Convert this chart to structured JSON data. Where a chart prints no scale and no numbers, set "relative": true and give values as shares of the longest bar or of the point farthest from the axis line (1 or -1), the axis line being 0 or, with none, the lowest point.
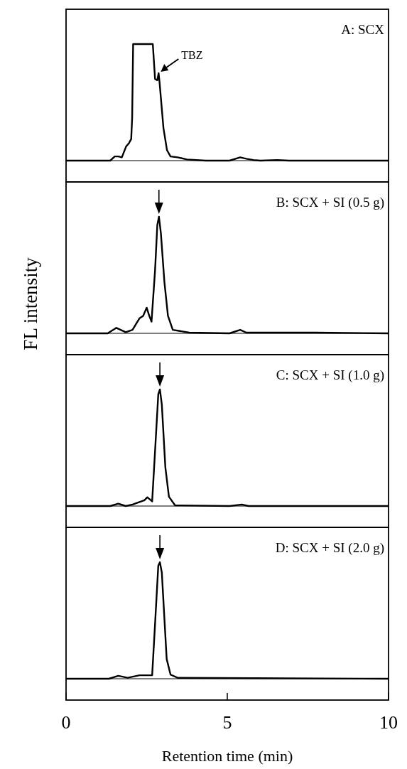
{
  "chart_data": [
    {
      "type": "line",
      "title": "A: SCX",
      "relative": true,
      "xlim": [
        0,
        10
      ],
      "tick_labels": false,
      "annotations": [
        {
          "text": "TBZ",
          "x": 2.87,
          "y": 0.75
        }
      ],
      "series": [
        {
          "color": "#000000",
          "x": [
            0,
            1.37,
            1.51,
            1.62,
            1.73,
            1.86,
            1.95,
            2.02,
            2.05,
            2.08,
            2.69,
            2.76,
            2.83,
            2.87,
            2.9,
            3.02,
            3.13,
            3.24,
            3.46,
            3.75,
            4.33,
            5.07,
            5.4,
            5.59,
            5.81,
            6.03,
            6.55,
            6.92,
            9.96,
            10
          ],
          "values": [
            0,
            0,
            0.036,
            0.036,
            0.028,
            0.12,
            0.15,
            0.185,
            0.37,
            1,
            1,
            0.7,
            0.69,
            0.75,
            0.67,
            0.28,
            0.09,
            0.036,
            0.028,
            0.01,
            0,
            0,
            0.028,
            0.016,
            0.005,
            0,
            0.005,
            0,
            0,
            0
          ]
        }
      ]
    },
    {
      "type": "line",
      "title": "B: SCX + SI (0.5 g)",
      "relative": true,
      "xlim": [
        0,
        10
      ],
      "tick_labels": false,
      "ylabel": "FL intensity",
      "series": [
        {
          "color": "#000000",
          "x": [
            0,
            1.29,
            1.56,
            1.85,
            2.06,
            2.28,
            2.39,
            2.5,
            2.58,
            2.65,
            2.76,
            2.83,
            2.88,
            2.94,
            3.05,
            3.16,
            3.31,
            3.53,
            3.82,
            5.07,
            5.4,
            5.59,
            7.72,
            9.96,
            10
          ],
          "values": [
            0,
            0,
            0.047,
            0.01,
            0.03,
            0.13,
            0.15,
            0.22,
            0.15,
            0.1,
            0.54,
            0.93,
            1,
            0.86,
            0.44,
            0.15,
            0.03,
            0.02,
            0.006,
            0,
            0.03,
            0.006,
            0.006,
            0,
            0
          ]
        }
      ]
    },
    {
      "type": "line",
      "title": "C: SCX + SI (1.0 g)",
      "relative": true,
      "xlim": [
        0,
        10
      ],
      "tick_labels": false,
      "series": [
        {
          "color": "#000000",
          "x": [
            0,
            1.37,
            1.62,
            1.85,
            2.06,
            2.43,
            2.52,
            2.67,
            2.77,
            2.86,
            2.91,
            2.97,
            3.08,
            3.19,
            3.38,
            5.07,
            5.45,
            5.66,
            9.96,
            10
          ],
          "values": [
            0,
            0,
            0.02,
            0,
            0.013,
            0.05,
            0.075,
            0.04,
            0.52,
            0.96,
            1,
            0.87,
            0.33,
            0.08,
            0.006,
            0,
            0.013,
            0,
            0,
            0
          ]
        }
      ]
    },
    {
      "type": "line",
      "title": "D: SCX + SI (2.0 g)",
      "relative": true,
      "xlim": [
        0,
        10
      ],
      "xticks": [
        0,
        5,
        10
      ],
      "tick_labels": "x",
      "xlabel": "Retention time (min)",
      "series": [
        {
          "color": "#000000",
          "x": [
            0,
            1.33,
            1.62,
            1.91,
            2.28,
            2.67,
            2.77,
            2.86,
            2.91,
            2.97,
            3.12,
            3.24,
            3.46,
            9.96,
            10
          ],
          "values": [
            0,
            0,
            0.025,
            0.008,
            0.03,
            0.03,
            0.52,
            0.97,
            1,
            0.91,
            0.17,
            0.035,
            0.008,
            0,
            0
          ]
        }
      ]
    }
  ]
}
